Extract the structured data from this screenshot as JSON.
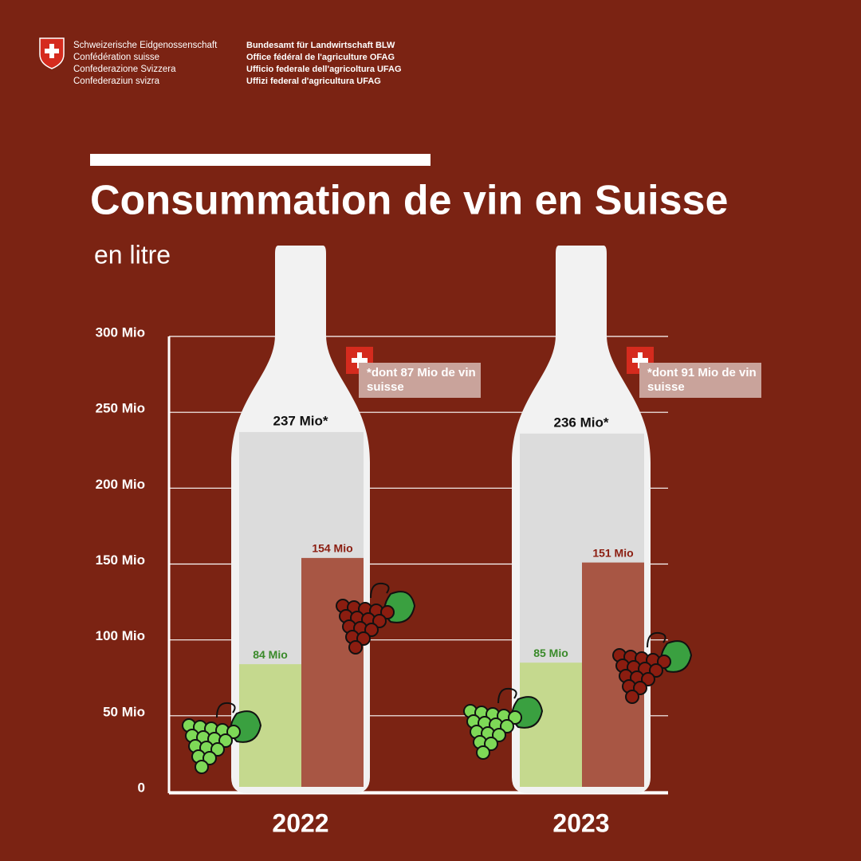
{
  "header": {
    "left": [
      "Schweizerische Eidgenossenschaft",
      "Confédération suisse",
      "Confederazione Svizzera",
      "Confederaziun svizra"
    ],
    "right": [
      "Bundesamt für Landwirtschaft BLW",
      "Office fédéral de l'agriculture OFAG",
      "Ufficio federale dell'agricoltura UFAG",
      "Uffizi federal d'agricultura UFAG"
    ]
  },
  "chart_data": {
    "type": "bottle-bar",
    "title": "Consummation de vin en Suisse",
    "subtitle": "en litre",
    "categories": [
      "2022",
      "2023"
    ],
    "totals": {
      "values": [
        237,
        236
      ],
      "value_labels": [
        "237 Mio*",
        "236 Mio*"
      ],
      "color": "#dcdcdc"
    },
    "series": [
      {
        "color": "#c5d98e",
        "label_color": "#3a8a2a",
        "values": [
          84,
          85
        ],
        "value_labels": [
          "84 Mio",
          "85 Mio"
        ]
      },
      {
        "color": "#a85644",
        "label_color": "#8b1d10",
        "values": [
          154,
          151
        ],
        "value_labels": [
          "154 Mio",
          "151 Mio"
        ]
      }
    ],
    "annotations": [
      "*dont 87 Mio de vin suisse",
      "*dont 91 Mio de vin suisse"
    ],
    "ylim": [
      0,
      300
    ],
    "yticks": [
      0,
      {
        "value": 50,
        "label": "50 Mio"
      },
      {
        "value": 100,
        "label": "100 Mio"
      },
      {
        "value": 150,
        "label": "150 Mio"
      },
      {
        "value": 200,
        "label": "200 Mio"
      },
      {
        "value": 250,
        "label": "250 Mio"
      },
      {
        "value": 300,
        "label": "300 Mio"
      }
    ],
    "grid": true
  }
}
